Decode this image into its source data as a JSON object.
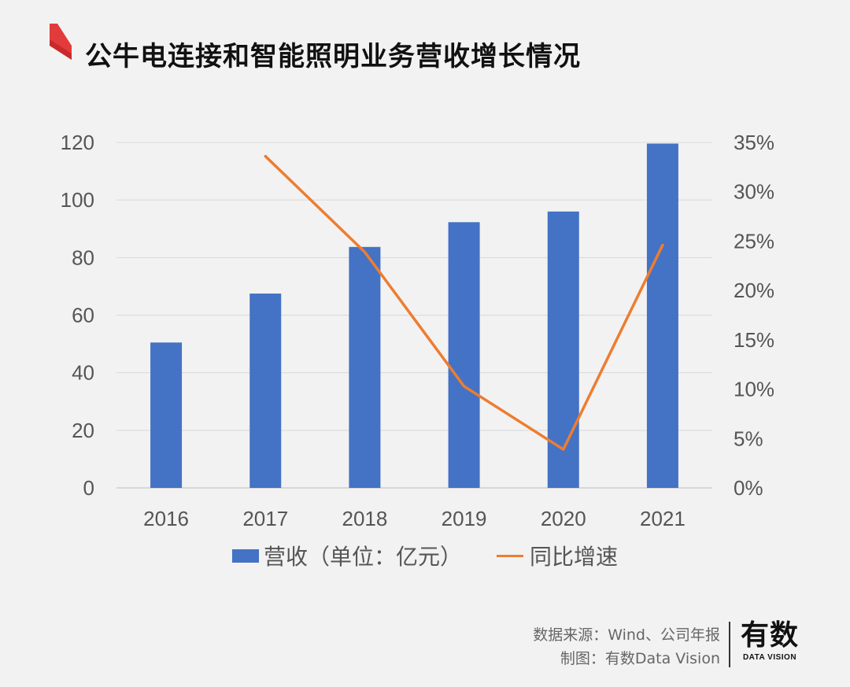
{
  "title": "公牛电连接和智能照明业务营收增长情况",
  "chart_data": {
    "type": "bar+line",
    "categories": [
      "2016",
      "2017",
      "2018",
      "2019",
      "2020",
      "2021"
    ],
    "series": [
      {
        "name": "营收（单位：亿元）",
        "type": "bar",
        "axis": "left",
        "color": "#4472c4",
        "values": [
          50.5,
          67.5,
          83.7,
          92.3,
          96.0,
          119.6
        ]
      },
      {
        "name": "同比增速",
        "type": "line",
        "axis": "right",
        "color": "#ed7d31",
        "values": [
          null,
          33.6,
          23.9,
          10.3,
          3.9,
          24.6
        ]
      }
    ],
    "y_left": {
      "min": 0,
      "max": 120,
      "ticks": [
        "0",
        "20",
        "40",
        "60",
        "80",
        "100",
        "120"
      ]
    },
    "y_right": {
      "min": 0,
      "max": 35,
      "ticks": [
        "0%",
        "5%",
        "10%",
        "15%",
        "20%",
        "25%",
        "30%",
        "35%"
      ]
    },
    "grid": true
  },
  "legend": {
    "bar_label": "营收（单位：亿元）",
    "line_label": "同比增速"
  },
  "source": {
    "line1": "数据来源：Wind、公司年报",
    "line2": "制图：有数Data Vision"
  },
  "brand": {
    "cn": "有数",
    "en": "DATA VISION"
  }
}
